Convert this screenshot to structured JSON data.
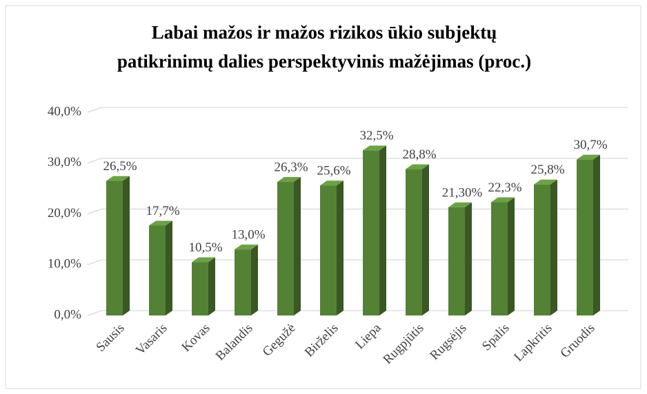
{
  "chart_data": {
    "type": "bar3d",
    "title": [
      "Labai mažos ir mažos rizikos ūkio subjektų",
      "patikrinimų dalies perspektyvinis mažėjimas (proc.)"
    ],
    "categories": [
      "Sausis",
      "Vasaris",
      "Kovas",
      "Balandis",
      "Gegužė",
      "Birželis",
      "Liepa",
      "Rugpjūtis",
      "Rugsėjis",
      "Spalis",
      "Lapkritis",
      "Gruodis"
    ],
    "values": [
      26.5,
      17.7,
      10.5,
      13.0,
      26.3,
      25.6,
      32.5,
      28.8,
      21.3,
      22.3,
      25.8,
      30.7
    ],
    "value_labels": [
      "26,5%",
      "17,7%",
      "10,5%",
      "13,0%",
      "26,3%",
      "25,6%",
      "32,5%",
      "28,8%",
      "21,30%",
      "22,3%",
      "25,8%",
      "30,7%"
    ],
    "color": "#548235",
    "ylim": [
      0,
      40
    ],
    "yticks": [
      {
        "value": 0,
        "label": "0,0%"
      },
      {
        "value": 10,
        "label": "10,0%"
      },
      {
        "value": 20,
        "label": "20,0%"
      },
      {
        "value": 30,
        "label": "30,0%"
      },
      {
        "value": 40,
        "label": "40,0%"
      }
    ],
    "grid": true
  }
}
